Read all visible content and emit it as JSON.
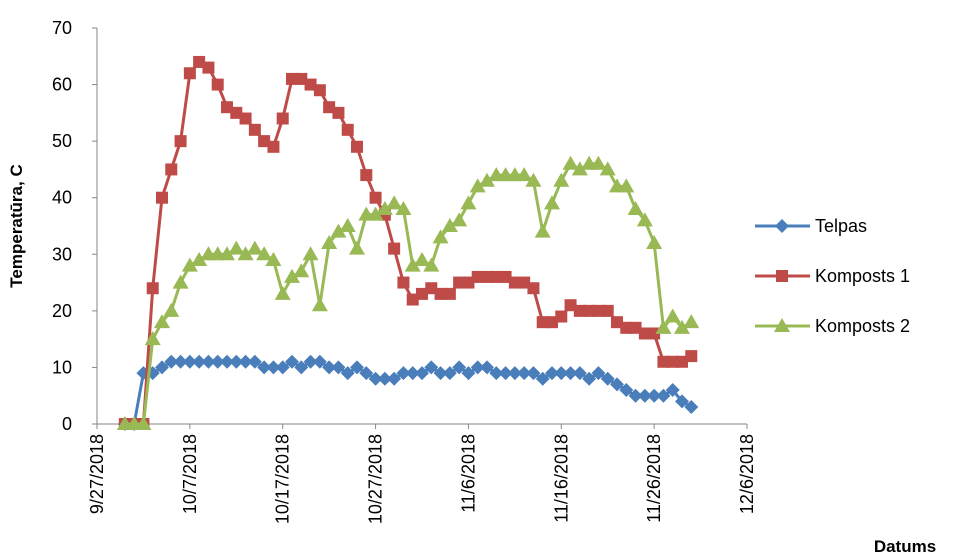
{
  "chart_data": {
    "type": "line",
    "y_label": "Temperatūra, C",
    "x_label": "Datums",
    "x": [
      "9/30/2018",
      "10/1/2018",
      "10/2/2018",
      "10/3/2018",
      "10/4/2018",
      "10/5/2018",
      "10/6/2018",
      "10/7/2018",
      "10/8/2018",
      "10/9/2018",
      "10/10/2018",
      "10/11/2018",
      "10/12/2018",
      "10/13/2018",
      "10/14/2018",
      "10/15/2018",
      "10/16/2018",
      "10/17/2018",
      "10/18/2018",
      "10/19/2018",
      "10/20/2018",
      "10/21/2018",
      "10/22/2018",
      "10/23/2018",
      "10/24/2018",
      "10/25/2018",
      "10/26/2018",
      "10/27/2018",
      "10/28/2018",
      "10/29/2018",
      "10/30/2018",
      "10/31/2018",
      "11/1/2018",
      "11/2/2018",
      "11/3/2018",
      "11/4/2018",
      "11/5/2018",
      "11/6/2018",
      "11/7/2018",
      "11/8/2018",
      "11/9/2018",
      "11/10/2018",
      "11/11/2018",
      "11/12/2018",
      "11/13/2018",
      "11/14/2018",
      "11/15/2018",
      "11/16/2018",
      "11/17/2018",
      "11/18/2018",
      "11/19/2018",
      "11/20/2018",
      "11/21/2018",
      "11/22/2018",
      "11/23/2018",
      "11/24/2018",
      "11/25/2018",
      "11/26/2018",
      "11/27/2018",
      "11/28/2018",
      "11/29/2018",
      "11/30/2018"
    ],
    "series": [
      {
        "name": "Telpas",
        "color": "#4a7ebb",
        "marker": "diamond",
        "values": [
          0,
          0,
          9,
          9,
          10,
          11,
          11,
          11,
          11,
          11,
          11,
          11,
          11,
          11,
          11,
          10,
          10,
          10,
          11,
          10,
          11,
          11,
          10,
          10,
          9,
          10,
          9,
          8,
          8,
          8,
          9,
          9,
          9,
          10,
          9,
          9,
          10,
          9,
          10,
          10,
          9,
          9,
          9,
          9,
          9,
          8,
          9,
          9,
          9,
          9,
          8,
          9,
          8,
          7,
          6,
          5,
          5,
          5,
          5,
          6,
          4,
          3
        ]
      },
      {
        "name": "Komposts 1",
        "color": "#be4b48",
        "marker": "square",
        "values": [
          0,
          0,
          0,
          24,
          40,
          45,
          50,
          62,
          64,
          63,
          60,
          56,
          55,
          54,
          52,
          50,
          49,
          54,
          61,
          61,
          60,
          59,
          56,
          55,
          52,
          49,
          44,
          40,
          37,
          31,
          25,
          22,
          23,
          24,
          23,
          23,
          25,
          25,
          26,
          26,
          26,
          26,
          25,
          25,
          24,
          18,
          18,
          19,
          21,
          20,
          20,
          20,
          20,
          18,
          17,
          17,
          16,
          16,
          11,
          11,
          11,
          12
        ]
      },
      {
        "name": "Komposts 2",
        "color": "#98b954",
        "marker": "triangle",
        "values": [
          0,
          0,
          0,
          15,
          18,
          20,
          25,
          28,
          29,
          30,
          30,
          30,
          31,
          30,
          31,
          30,
          29,
          23,
          26,
          27,
          30,
          21,
          32,
          34,
          35,
          31,
          37,
          37,
          38,
          39,
          38,
          28,
          29,
          28,
          33,
          35,
          36,
          39,
          42,
          43,
          44,
          44,
          44,
          44,
          43,
          34,
          39,
          43,
          46,
          45,
          46,
          46,
          45,
          42,
          42,
          38,
          36,
          32,
          17,
          19,
          17,
          18
        ]
      }
    ],
    "xlim": [
      "9/27/2018",
      "12/6/2018"
    ],
    "xticks": [
      "9/27/2018",
      "10/7/2018",
      "10/17/2018",
      "10/27/2018",
      "11/6/2018",
      "11/16/2018",
      "11/26/2018",
      "12/6/2018"
    ],
    "ylim": [
      0,
      70
    ],
    "yticks": [
      0,
      10,
      20,
      30,
      40,
      50,
      60,
      70
    ],
    "grid": false,
    "legend": "right"
  }
}
